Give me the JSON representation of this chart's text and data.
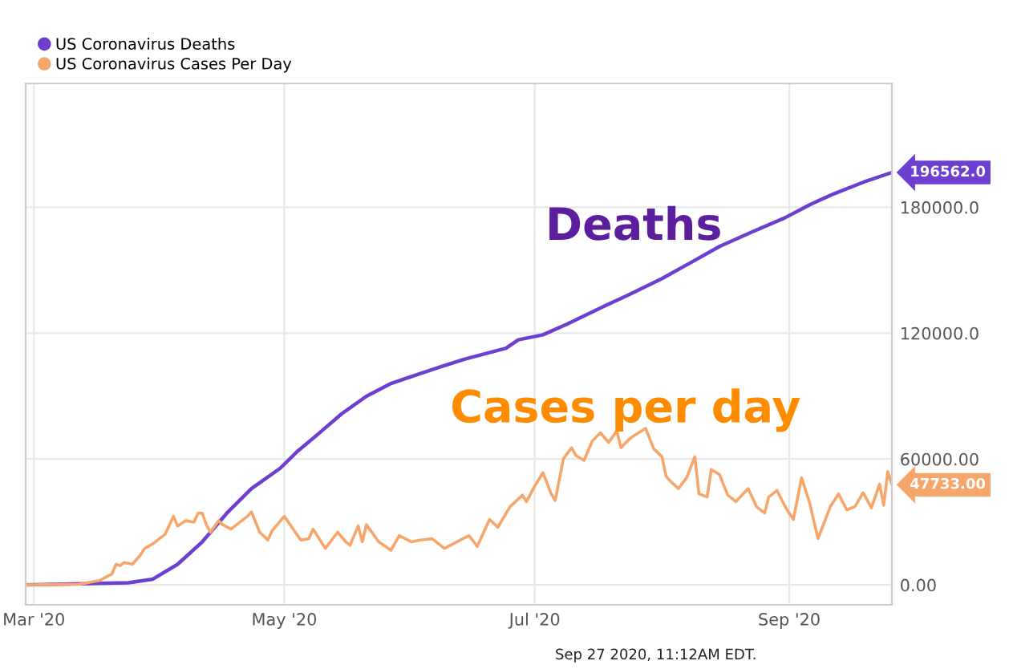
{
  "chart_data": {
    "type": "line",
    "series": [
      {
        "name": "US Coronavirus Deaths",
        "color": "#6c3fd1",
        "x": [
          "2020-02-28",
          "2020-03-24",
          "2020-03-30",
          "2020-04-05",
          "2020-04-11",
          "2020-04-17",
          "2020-04-23",
          "2020-04-30",
          "2020-05-04",
          "2020-05-09",
          "2020-05-15",
          "2020-05-21",
          "2020-05-27",
          "2020-06-02",
          "2020-06-08",
          "2020-06-14",
          "2020-06-24",
          "2020-06-27",
          "2020-07-03",
          "2020-07-09",
          "2020-07-18",
          "2020-07-24",
          "2020-08-01",
          "2020-08-08",
          "2020-08-15",
          "2020-08-23",
          "2020-08-31",
          "2020-09-06",
          "2020-09-12",
          "2020-09-19",
          "2020-09-26"
        ],
        "values": [
          0,
          1000,
          2750,
          9800,
          20500,
          34200,
          45900,
          55600,
          63300,
          71500,
          81600,
          89900,
          96000,
          100000,
          103900,
          107600,
          112800,
          116800,
          119200,
          124400,
          132900,
          138400,
          146000,
          153600,
          161300,
          168300,
          175000,
          181200,
          186500,
          191900,
          196562
        ]
      },
      {
        "name": "US Coronavirus Cases Per Day",
        "color": "#f7a66b",
        "x": [
          "2020-02-28",
          "2020-03-12",
          "2020-03-17",
          "2020-03-20",
          "2020-03-21",
          "2020-03-22",
          "2020-03-23",
          "2020-03-25",
          "2020-03-27",
          "2020-03-28",
          "2020-03-30",
          "2020-04-02",
          "2020-04-04",
          "2020-04-05",
          "2020-04-07",
          "2020-04-09",
          "2020-04-10",
          "2020-04-11",
          "2020-04-12",
          "2020-04-13",
          "2020-04-15",
          "2020-04-16",
          "2020-04-18",
          "2020-04-19",
          "2020-04-22",
          "2020-04-23",
          "2020-04-25",
          "2020-04-27",
          "2020-04-28",
          "2020-05-01",
          "2020-05-05",
          "2020-05-07",
          "2020-05-08",
          "2020-05-11",
          "2020-05-14",
          "2020-05-16",
          "2020-05-17",
          "2020-05-19",
          "2020-05-20",
          "2020-05-21",
          "2020-05-24",
          "2020-05-27",
          "2020-05-29",
          "2020-06-01",
          "2020-06-03",
          "2020-06-06",
          "2020-06-09",
          "2020-06-12",
          "2020-06-15",
          "2020-06-17",
          "2020-06-20",
          "2020-06-22",
          "2020-06-25",
          "2020-06-28",
          "2020-06-29",
          "2020-07-01",
          "2020-07-03",
          "2020-07-05",
          "2020-07-06",
          "2020-07-08",
          "2020-07-10",
          "2020-07-11",
          "2020-07-13",
          "2020-07-15",
          "2020-07-17",
          "2020-07-19",
          "2020-07-21",
          "2020-07-22",
          "2020-07-24",
          "2020-07-25",
          "2020-07-28",
          "2020-07-30",
          "2020-08-01",
          "2020-08-02",
          "2020-08-03",
          "2020-08-05",
          "2020-08-07",
          "2020-08-09",
          "2020-08-10",
          "2020-08-12",
          "2020-08-13",
          "2020-08-15",
          "2020-08-17",
          "2020-08-19",
          "2020-08-22",
          "2020-08-24",
          "2020-08-26",
          "2020-08-27",
          "2020-08-29",
          "2020-08-31",
          "2020-09-01",
          "2020-09-02",
          "2020-09-04",
          "2020-09-06",
          "2020-09-08",
          "2020-09-11",
          "2020-09-13",
          "2020-09-15",
          "2020-09-17",
          "2020-09-19",
          "2020-09-21",
          "2020-09-23",
          "2020-09-24",
          "2020-09-25",
          "2020-09-26"
        ],
        "values": [
          0,
          300,
          2100,
          5200,
          9800,
          9200,
          10700,
          9800,
          14400,
          17400,
          19600,
          24200,
          32700,
          28100,
          30600,
          29900,
          34200,
          34200,
          28700,
          25100,
          30600,
          28700,
          26600,
          28100,
          32700,
          34800,
          25100,
          21400,
          25700,
          32700,
          21400,
          22000,
          26600,
          17400,
          25100,
          20500,
          18900,
          28100,
          20500,
          28700,
          20500,
          16500,
          23500,
          20500,
          21400,
          22000,
          17400,
          20500,
          23500,
          18300,
          31200,
          27500,
          37300,
          42800,
          39700,
          47100,
          53500,
          43400,
          40300,
          60200,
          65400,
          61700,
          59300,
          68500,
          72500,
          67900,
          73400,
          65400,
          69400,
          70900,
          74600,
          64800,
          61100,
          51700,
          49500,
          45900,
          51100,
          61100,
          43400,
          41900,
          55000,
          52600,
          42800,
          39700,
          45900,
          37300,
          34200,
          41900,
          45000,
          37300,
          34200,
          31200,
          51100,
          38800,
          22000,
          37300,
          43400,
          35800,
          37300,
          44000,
          36700,
          48000,
          37900,
          54000,
          47733
        ]
      }
    ],
    "xlim": [
      "2020-02-28",
      "2020-09-26"
    ],
    "xticks": [
      {
        "value": "2020-03-01",
        "label": "Mar '20"
      },
      {
        "value": "2020-05-01",
        "label": "May '20"
      },
      {
        "value": "2020-07-01",
        "label": "Jul '20"
      },
      {
        "value": "2020-09-01",
        "label": "Sep '20"
      }
    ],
    "ylim": [
      -9500,
      239000
    ],
    "yticks": [
      {
        "value": 0,
        "label": "0.00"
      },
      {
        "value": 60000,
        "label": "60000.00"
      },
      {
        "value": 120000,
        "label": "120000.0"
      },
      {
        "value": 180000,
        "label": "180000.0"
      }
    ],
    "grid": true,
    "legend": "top left",
    "annotations": [
      {
        "text": "196562.0",
        "x": "2020-09-26",
        "y": 196562
      },
      {
        "text": "47733.00",
        "x": "2020-09-26",
        "y": 47733
      },
      "Deaths",
      "Cases per day",
      "Sep 27 2020, 11:12AM EDT."
    ]
  }
}
